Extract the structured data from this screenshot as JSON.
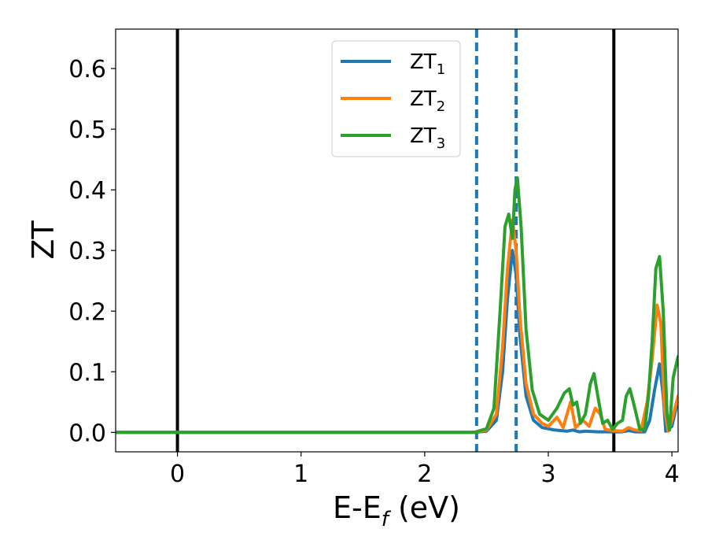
{
  "chart_data": {
    "type": "line",
    "title": "",
    "xlabel": {
      "base": "E-E",
      "sub": "f",
      "suffix": " (eV)"
    },
    "ylabel": "ZT",
    "xlim": [
      -0.5,
      4.05
    ],
    "ylim": [
      -0.032,
      0.665
    ],
    "xticks": [
      0,
      1,
      2,
      3,
      4
    ],
    "xtick_labels": [
      "0",
      "1",
      "2",
      "3",
      "4"
    ],
    "yticks": [
      0.0,
      0.1,
      0.2,
      0.3,
      0.4,
      0.5,
      0.6
    ],
    "ytick_labels": [
      "0.0",
      "0.1",
      "0.2",
      "0.3",
      "0.4",
      "0.5",
      "0.6"
    ],
    "grid": false,
    "legend_position": "top-center",
    "vertical_lines": [
      {
        "x": 0.0,
        "style": "solid",
        "color": "#000000"
      },
      {
        "x": 3.53,
        "style": "solid",
        "color": "#000000"
      },
      {
        "x": 2.42,
        "style": "dashed",
        "color": "#1f77b4"
      },
      {
        "x": 2.74,
        "style": "dashed",
        "color": "#1f77b4"
      }
    ],
    "series": [
      {
        "name": "ZT",
        "sub": "1",
        "color": "#1f77b4",
        "points": [
          [
            -0.5,
            0
          ],
          [
            2.4,
            0
          ],
          [
            2.5,
            0.002
          ],
          [
            2.58,
            0.02
          ],
          [
            2.63,
            0.1
          ],
          [
            2.67,
            0.22
          ],
          [
            2.71,
            0.3
          ],
          [
            2.74,
            0.26
          ],
          [
            2.77,
            0.16
          ],
          [
            2.82,
            0.06
          ],
          [
            2.88,
            0.02
          ],
          [
            2.95,
            0.008
          ],
          [
            3.05,
            0.004
          ],
          [
            3.15,
            0.002
          ],
          [
            3.2,
            0.004
          ],
          [
            3.25,
            0.001
          ],
          [
            3.3,
            0.002
          ],
          [
            3.4,
            0.001
          ],
          [
            3.5,
            0.001
          ],
          [
            3.6,
            0.001
          ],
          [
            3.65,
            0.003
          ],
          [
            3.7,
            0.001
          ],
          [
            3.78,
            0.001
          ],
          [
            3.82,
            0.02
          ],
          [
            3.86,
            0.07
          ],
          [
            3.9,
            0.113
          ],
          [
            3.93,
            0.06
          ],
          [
            3.95,
            0.002
          ],
          [
            4.0,
            0.01
          ],
          [
            4.05,
            0.055
          ]
        ]
      },
      {
        "name": "ZT",
        "sub": "2",
        "color": "#ff7f0e",
        "points": [
          [
            -0.5,
            0
          ],
          [
            2.4,
            0
          ],
          [
            2.5,
            0.004
          ],
          [
            2.58,
            0.03
          ],
          [
            2.63,
            0.14
          ],
          [
            2.67,
            0.27
          ],
          [
            2.71,
            0.35
          ],
          [
            2.74,
            0.3
          ],
          [
            2.77,
            0.19
          ],
          [
            2.82,
            0.08
          ],
          [
            2.88,
            0.03
          ],
          [
            2.95,
            0.015
          ],
          [
            3.0,
            0.01
          ],
          [
            3.07,
            0.025
          ],
          [
            3.12,
            0.008
          ],
          [
            3.18,
            0.05
          ],
          [
            3.22,
            0.008
          ],
          [
            3.28,
            0.02
          ],
          [
            3.33,
            0.01
          ],
          [
            3.38,
            0.04
          ],
          [
            3.42,
            0.03
          ],
          [
            3.46,
            0.005
          ],
          [
            3.52,
            0.003
          ],
          [
            3.6,
            0.002
          ],
          [
            3.65,
            0.008
          ],
          [
            3.7,
            0.004
          ],
          [
            3.75,
            0.003
          ],
          [
            3.8,
            0.05
          ],
          [
            3.84,
            0.12
          ],
          [
            3.88,
            0.21
          ],
          [
            3.91,
            0.18
          ],
          [
            3.94,
            0.04
          ],
          [
            3.97,
            0.002
          ],
          [
            4.0,
            0.02
          ],
          [
            4.05,
            0.06
          ]
        ]
      },
      {
        "name": "ZT",
        "sub": "3",
        "color": "#2ca02c",
        "points": [
          [
            -0.5,
            0
          ],
          [
            2.4,
            0
          ],
          [
            2.5,
            0.006
          ],
          [
            2.56,
            0.04
          ],
          [
            2.61,
            0.2
          ],
          [
            2.65,
            0.34
          ],
          [
            2.68,
            0.36
          ],
          [
            2.71,
            0.32
          ],
          [
            2.73,
            0.4
          ],
          [
            2.75,
            0.42
          ],
          [
            2.78,
            0.34
          ],
          [
            2.82,
            0.17
          ],
          [
            2.87,
            0.07
          ],
          [
            2.93,
            0.03
          ],
          [
            3.0,
            0.02
          ],
          [
            3.07,
            0.04
          ],
          [
            3.13,
            0.065
          ],
          [
            3.17,
            0.072
          ],
          [
            3.2,
            0.045
          ],
          [
            3.23,
            0.05
          ],
          [
            3.26,
            0.015
          ],
          [
            3.3,
            0.03
          ],
          [
            3.34,
            0.08
          ],
          [
            3.37,
            0.097
          ],
          [
            3.4,
            0.06
          ],
          [
            3.44,
            0.015
          ],
          [
            3.48,
            0.02
          ],
          [
            3.52,
            0.005
          ],
          [
            3.56,
            0.015
          ],
          [
            3.6,
            0.02
          ],
          [
            3.63,
            0.06
          ],
          [
            3.66,
            0.072
          ],
          [
            3.7,
            0.04
          ],
          [
            3.74,
            0.005
          ],
          [
            3.78,
            0.005
          ],
          [
            3.81,
            0.06
          ],
          [
            3.84,
            0.15
          ],
          [
            3.87,
            0.27
          ],
          [
            3.9,
            0.29
          ],
          [
            3.93,
            0.2
          ],
          [
            3.96,
            0.03
          ],
          [
            3.98,
            0.004
          ],
          [
            4.01,
            0.09
          ],
          [
            4.05,
            0.125
          ]
        ]
      }
    ]
  }
}
